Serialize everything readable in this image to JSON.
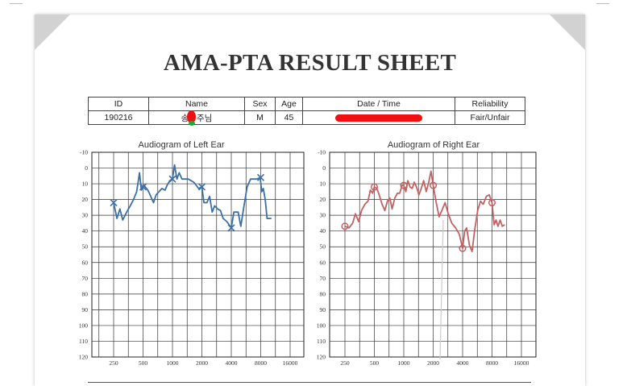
{
  "document": {
    "title": "AMA-PTA RESULT SHEET"
  },
  "info_table": {
    "headers": [
      "ID",
      "Name",
      "Sex",
      "Age",
      "Date / Time",
      "Reliability"
    ],
    "values": {
      "id": "190216",
      "name": "송ㅇ주님",
      "sex": "M",
      "age": "45",
      "reliability": "Fair/Unfair"
    }
  },
  "chart_data": [
    {
      "type": "line",
      "title": "Audiogram of Left Ear",
      "x_ticks": [
        "250",
        "500",
        "1000",
        "2000",
        "4000",
        "8000",
        "16000"
      ],
      "y_ticks": [
        "-10",
        "0",
        "10",
        "20",
        "30",
        "40",
        "50",
        "60",
        "70",
        "80",
        "90",
        "100",
        "110",
        "120"
      ],
      "ylim": [
        -10,
        120
      ],
      "y_inverted": true,
      "x_scale": "log",
      "color": "#3a6fa8",
      "marker": "x",
      "points": [
        [
          250,
          22
        ],
        [
          270,
          32
        ],
        [
          290,
          26
        ],
        [
          310,
          33
        ],
        [
          340,
          28
        ],
        [
          370,
          24
        ],
        [
          400,
          20
        ],
        [
          430,
          15
        ],
        [
          460,
          3
        ],
        [
          480,
          14
        ],
        [
          510,
          11
        ],
        [
          560,
          14
        ],
        [
          600,
          18
        ],
        [
          640,
          22
        ],
        [
          680,
          17
        ],
        [
          730,
          15
        ],
        [
          780,
          13
        ],
        [
          840,
          14
        ],
        [
          880,
          11
        ],
        [
          940,
          8
        ],
        [
          1000,
          7
        ],
        [
          1050,
          -2
        ],
        [
          1110,
          7
        ],
        [
          1170,
          3
        ],
        [
          1250,
          7
        ],
        [
          1350,
          7
        ],
        [
          1450,
          7
        ],
        [
          1550,
          8
        ],
        [
          1650,
          9
        ],
        [
          1750,
          11
        ],
        [
          1850,
          13
        ],
        [
          2000,
          12
        ],
        [
          2100,
          22
        ],
        [
          2250,
          22
        ],
        [
          2400,
          18
        ],
        [
          2550,
          28
        ],
        [
          2700,
          24
        ],
        [
          2900,
          26
        ],
        [
          3100,
          27
        ],
        [
          3300,
          32
        ],
        [
          3600,
          34
        ],
        [
          4000,
          38
        ],
        [
          4250,
          28
        ],
        [
          4500,
          28
        ],
        [
          4700,
          28
        ],
        [
          5000,
          37
        ],
        [
          5400,
          24
        ],
        [
          5800,
          12
        ],
        [
          6300,
          7
        ],
        [
          6800,
          7
        ],
        [
          7300,
          7
        ],
        [
          7900,
          6
        ],
        [
          8200,
          15
        ],
        [
          8500,
          13
        ],
        [
          8900,
          20
        ],
        [
          9300,
          32
        ],
        [
          9800,
          32
        ],
        [
          10300,
          32
        ]
      ],
      "marker_points": [
        [
          250,
          22
        ],
        [
          500,
          12
        ],
        [
          1000,
          7
        ],
        [
          2000,
          12
        ],
        [
          4000,
          38
        ],
        [
          8000,
          6
        ]
      ]
    },
    {
      "type": "line",
      "title": "Audiogram of Right Ear",
      "x_ticks": [
        "250",
        "500",
        "1000",
        "2000",
        "4000",
        "8000",
        "16000"
      ],
      "y_ticks": [
        "-10",
        "0",
        "10",
        "20",
        "30",
        "40",
        "50",
        "60",
        "70",
        "80",
        "90",
        "100",
        "110",
        "120"
      ],
      "ylim": [
        -10,
        120
      ],
      "y_inverted": true,
      "x_scale": "log",
      "color": "#c46060",
      "marker": "o",
      "points": [
        [
          250,
          37
        ],
        [
          275,
          38
        ],
        [
          300,
          35
        ],
        [
          320,
          29
        ],
        [
          345,
          34
        ],
        [
          370,
          27
        ],
        [
          400,
          23
        ],
        [
          430,
          21
        ],
        [
          455,
          14
        ],
        [
          480,
          16
        ],
        [
          500,
          12
        ],
        [
          530,
          13
        ],
        [
          560,
          17
        ],
        [
          600,
          23
        ],
        [
          640,
          27
        ],
        [
          680,
          21
        ],
        [
          720,
          19
        ],
        [
          760,
          26
        ],
        [
          810,
          19
        ],
        [
          860,
          16
        ],
        [
          910,
          16
        ],
        [
          960,
          11
        ],
        [
          1000,
          11
        ],
        [
          1050,
          15
        ],
        [
          1100,
          8
        ],
        [
          1160,
          12
        ],
        [
          1220,
          13
        ],
        [
          1280,
          9
        ],
        [
          1350,
          12
        ],
        [
          1430,
          17
        ],
        [
          1510,
          13
        ],
        [
          1600,
          8
        ],
        [
          1700,
          15
        ],
        [
          1800,
          9
        ],
        [
          1900,
          2
        ],
        [
          2000,
          11
        ],
        [
          2150,
          22
        ],
        [
          2300,
          31
        ],
        [
          2450,
          27
        ],
        [
          2650,
          22
        ],
        [
          2850,
          29
        ],
        [
          3100,
          35
        ],
        [
          3400,
          38
        ],
        [
          3700,
          42
        ],
        [
          4000,
          51
        ],
        [
          4200,
          40
        ],
        [
          4400,
          38
        ],
        [
          4700,
          49
        ],
        [
          5000,
          53
        ],
        [
          5300,
          40
        ],
        [
          5700,
          27
        ],
        [
          6100,
          21
        ],
        [
          6500,
          23
        ],
        [
          7000,
          18
        ],
        [
          7500,
          17
        ],
        [
          8000,
          22
        ],
        [
          8400,
          36
        ],
        [
          8800,
          33
        ],
        [
          9200,
          37
        ],
        [
          9700,
          33
        ],
        [
          10200,
          37
        ],
        [
          10800,
          36
        ]
      ],
      "marker_points": [
        [
          250,
          37
        ],
        [
          500,
          12
        ],
        [
          1000,
          11
        ],
        [
          2000,
          11
        ],
        [
          4000,
          51
        ],
        [
          8000,
          22
        ]
      ]
    }
  ]
}
